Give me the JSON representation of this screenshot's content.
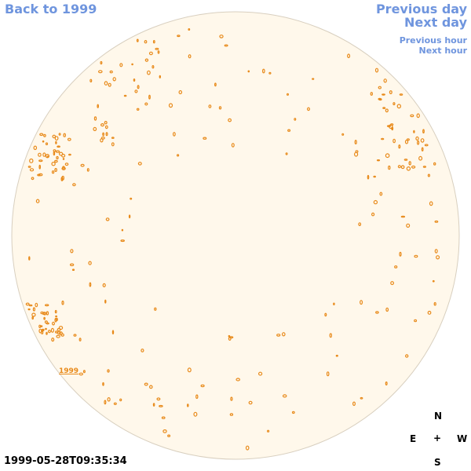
{
  "nav": {
    "back_label": "Back to 1999",
    "prev_day_label": "Previous day",
    "next_day_label": "Next day",
    "prev_hour_label": "Previous hour",
    "next_hour_label": "Next hour"
  },
  "timestamp": "1999-05-28T09:35:34",
  "year_tag": "1999",
  "compass": {
    "north": "N",
    "east": "E",
    "center": "+",
    "west": "W",
    "south": "S"
  },
  "colors": {
    "disk_fill": "#fff8eb",
    "disk_stroke": "#d8cfbf",
    "contour": "#e88a1a",
    "link": "#6f95de"
  }
}
